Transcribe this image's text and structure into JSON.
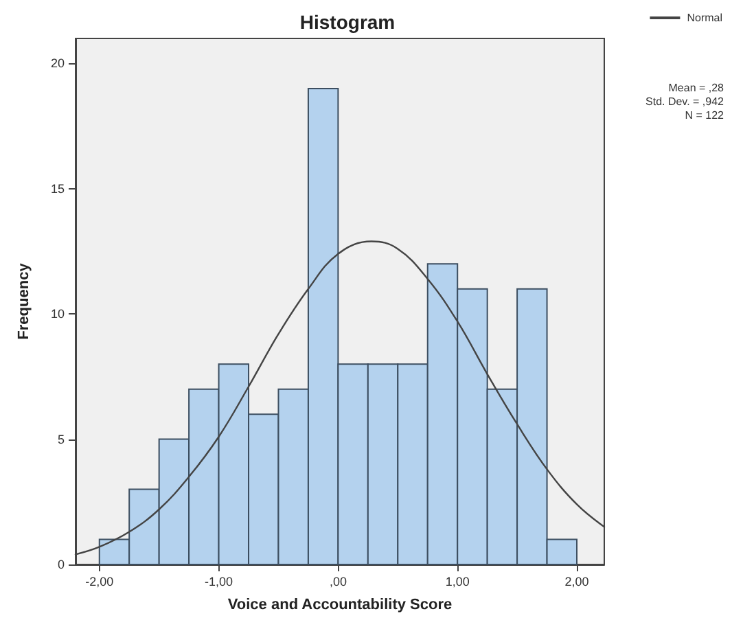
{
  "chart_data": {
    "type": "histogram",
    "title": "Histogram",
    "xlabel": "Voice and Accountability Score",
    "ylabel": "Frequency",
    "bins": [
      -2.0,
      -1.75,
      -1.5,
      -1.25,
      -1.0,
      -0.75,
      -0.5,
      -0.25,
      0.0,
      0.25,
      0.5,
      0.75,
      1.0,
      1.25,
      1.5,
      1.75,
      2.0
    ],
    "values": [
      1,
      3,
      5,
      7,
      8,
      6,
      7,
      19,
      8,
      8,
      8,
      12,
      11,
      7,
      11,
      1
    ],
    "color": "#b4d2ee",
    "series": [
      {
        "name": "Normal",
        "type": "line",
        "color": "#444444",
        "x": [
          -2.2,
          -2.0,
          -1.75,
          -1.5,
          -1.25,
          -1.0,
          -0.75,
          -0.5,
          -0.25,
          0.0,
          0.28,
          0.5,
          0.75,
          1.0,
          1.25,
          1.5,
          1.75,
          2.0,
          2.23
        ],
        "values": [
          0.4,
          0.7,
          1.3,
          2.2,
          3.5,
          5.1,
          7.1,
          9.2,
          11.0,
          12.4,
          12.9,
          12.6,
          11.4,
          9.7,
          7.6,
          5.6,
          3.8,
          2.4,
          1.5
        ]
      }
    ],
    "xlim": [
      -2.2,
      2.23
    ],
    "ylim": [
      0,
      21
    ],
    "xticks": [
      {
        "value": -2,
        "label": "-2,00"
      },
      {
        "value": -1,
        "label": "-1,00"
      },
      {
        "value": 0,
        "label": ",00"
      },
      {
        "value": 1,
        "label": "1,00"
      },
      {
        "value": 2,
        "label": "2,00"
      }
    ],
    "yticks": [
      0,
      5,
      10,
      15,
      20
    ],
    "grid": false,
    "legend": "top right",
    "marker": "none",
    "line_style": "solid",
    "annotations": [
      "Mean = ,28",
      "Std. Dev. = ,942",
      "N = 122"
    ]
  }
}
